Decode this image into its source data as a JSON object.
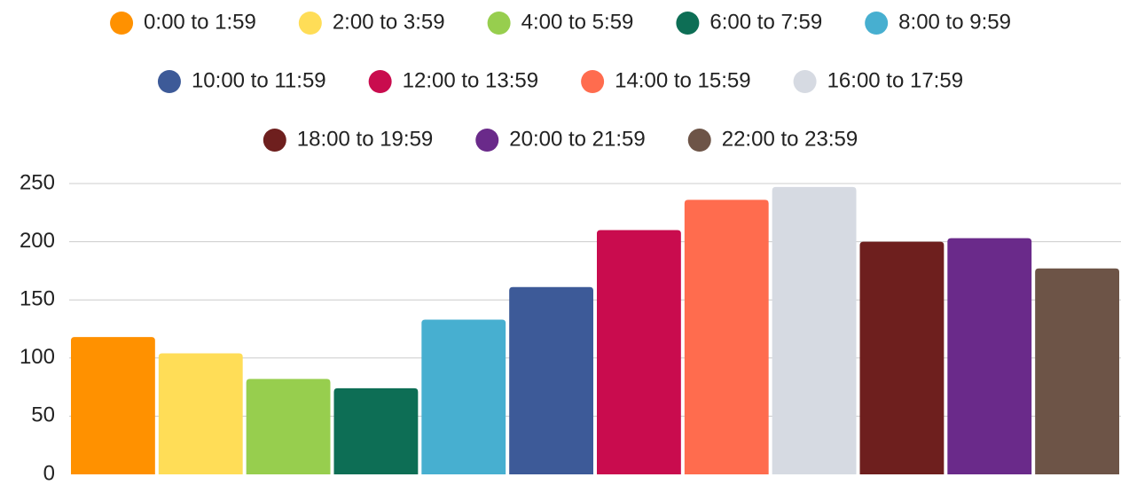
{
  "chart_data": {
    "type": "bar",
    "title": "",
    "xlabel": "",
    "ylabel": "",
    "ylim": [
      0,
      250
    ],
    "yticks": [
      0,
      50,
      100,
      150,
      200,
      250
    ],
    "grid": true,
    "legend_position": "top",
    "categories": [
      "0:00 to 1:59",
      "2:00 to 3:59",
      "4:00 to 5:59",
      "6:00 to 7:59",
      "8:00 to 9:59",
      "10:00 to 11:59",
      "12:00 to 13:59",
      "14:00 to 15:59",
      "16:00 to 17:59",
      "18:00 to 19:59",
      "20:00 to 21:59",
      "22:00 to 23:59"
    ],
    "values": [
      118,
      104,
      82,
      74,
      133,
      161,
      210,
      236,
      247,
      200,
      203,
      177
    ],
    "colors": [
      "#FF9100",
      "#FFDD57",
      "#97CE4E",
      "#0D6E55",
      "#47AFD0",
      "#3D5A98",
      "#C90C4E",
      "#FF6C4E",
      "#D6DAE2",
      "#6E1F1E",
      "#6A2A8A",
      "#6D5447"
    ]
  }
}
